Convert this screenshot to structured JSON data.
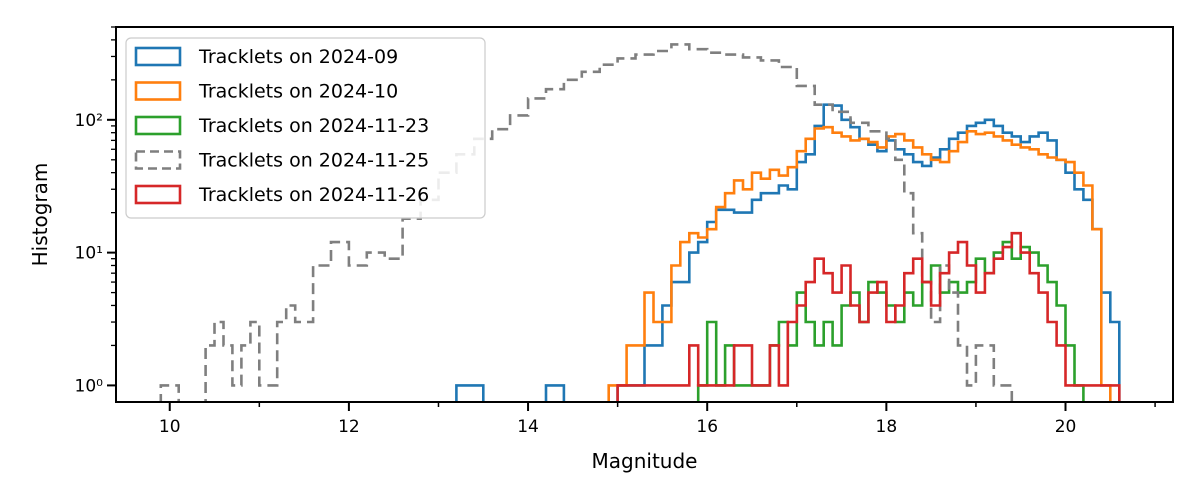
{
  "chart_data": {
    "type": "histogram-step",
    "xlabel": "Magnitude",
    "ylabel": "Histogram",
    "yscale": "log",
    "xlim": [
      9.4,
      21.2
    ],
    "ylim": [
      0.75,
      500
    ],
    "xticks": [
      10,
      12,
      14,
      16,
      18,
      20
    ],
    "xtick_labels": [
      "10",
      "12",
      "14",
      "16",
      "18",
      "20"
    ],
    "yticks": [
      1,
      10,
      100
    ],
    "ytick_labels": [
      "10⁰",
      "10¹",
      "10²"
    ],
    "grid": false,
    "legend_position": "top-left",
    "series": [
      {
        "name": "Tracklets on 2024-09",
        "color": "#1f77b4",
        "dashed": false,
        "points": [
          [
            13.2,
            1
          ],
          [
            13.5,
            0
          ],
          [
            14.2,
            1
          ],
          [
            14.4,
            0
          ],
          [
            15.0,
            1
          ],
          [
            15.3,
            2
          ],
          [
            15.5,
            4
          ],
          [
            15.6,
            6
          ],
          [
            15.8,
            10
          ],
          [
            15.9,
            12
          ],
          [
            16.0,
            17
          ],
          [
            16.1,
            21
          ],
          [
            16.3,
            20
          ],
          [
            16.5,
            25
          ],
          [
            16.6,
            28
          ],
          [
            16.8,
            32
          ],
          [
            16.9,
            30
          ],
          [
            17.0,
            48
          ],
          [
            17.1,
            55
          ],
          [
            17.2,
            90
          ],
          [
            17.3,
            130
          ],
          [
            17.4,
            128
          ],
          [
            17.5,
            100
          ],
          [
            17.6,
            88
          ],
          [
            17.7,
            72
          ],
          [
            17.8,
            65
          ],
          [
            17.9,
            58
          ],
          [
            18.0,
            70
          ],
          [
            18.1,
            60
          ],
          [
            18.2,
            55
          ],
          [
            18.3,
            48
          ],
          [
            18.4,
            45
          ],
          [
            18.5,
            52
          ],
          [
            18.6,
            60
          ],
          [
            18.7,
            72
          ],
          [
            18.8,
            80
          ],
          [
            18.9,
            90
          ],
          [
            19.0,
            95
          ],
          [
            19.1,
            100
          ],
          [
            19.2,
            90
          ],
          [
            19.3,
            80
          ],
          [
            19.4,
            75
          ],
          [
            19.5,
            68
          ],
          [
            19.6,
            75
          ],
          [
            19.7,
            80
          ],
          [
            19.8,
            70
          ],
          [
            19.9,
            50
          ],
          [
            20.0,
            40
          ],
          [
            20.1,
            30
          ],
          [
            20.2,
            25
          ],
          [
            20.3,
            15
          ],
          [
            20.4,
            5
          ],
          [
            20.5,
            3
          ],
          [
            20.6,
            0
          ]
        ]
      },
      {
        "name": "Tracklets on 2024-10",
        "color": "#ff7f0e",
        "dashed": false,
        "points": [
          [
            14.9,
            1
          ],
          [
            15.1,
            2
          ],
          [
            15.3,
            5
          ],
          [
            15.4,
            3
          ],
          [
            15.6,
            8
          ],
          [
            15.7,
            12
          ],
          [
            15.8,
            14
          ],
          [
            15.9,
            13
          ],
          [
            16.0,
            15
          ],
          [
            16.1,
            22
          ],
          [
            16.2,
            28
          ],
          [
            16.3,
            35
          ],
          [
            16.4,
            30
          ],
          [
            16.5,
            40
          ],
          [
            16.6,
            36
          ],
          [
            16.7,
            42
          ],
          [
            16.8,
            38
          ],
          [
            16.9,
            44
          ],
          [
            17.0,
            58
          ],
          [
            17.1,
            72
          ],
          [
            17.2,
            86
          ],
          [
            17.3,
            88
          ],
          [
            17.4,
            80
          ],
          [
            17.5,
            75
          ],
          [
            17.6,
            70
          ],
          [
            17.7,
            72
          ],
          [
            17.8,
            68
          ],
          [
            17.9,
            62
          ],
          [
            18.0,
            75
          ],
          [
            18.1,
            78
          ],
          [
            18.2,
            70
          ],
          [
            18.3,
            62
          ],
          [
            18.4,
            55
          ],
          [
            18.5,
            50
          ],
          [
            18.6,
            48
          ],
          [
            18.7,
            58
          ],
          [
            18.8,
            68
          ],
          [
            18.9,
            82
          ],
          [
            19.0,
            78
          ],
          [
            19.1,
            80
          ],
          [
            19.2,
            75
          ],
          [
            19.3,
            70
          ],
          [
            19.4,
            65
          ],
          [
            19.5,
            62
          ],
          [
            19.6,
            60
          ],
          [
            19.7,
            55
          ],
          [
            19.8,
            52
          ],
          [
            19.9,
            50
          ],
          [
            20.0,
            48
          ],
          [
            20.1,
            40
          ],
          [
            20.2,
            32
          ],
          [
            20.3,
            15
          ],
          [
            20.4,
            1
          ],
          [
            20.5,
            0
          ]
        ]
      },
      {
        "name": "Tracklets on 2024-11-23",
        "color": "#2ca02c",
        "dashed": false,
        "points": [
          [
            15.9,
            1
          ],
          [
            16.0,
            3
          ],
          [
            16.1,
            1
          ],
          [
            16.2,
            2
          ],
          [
            16.3,
            1
          ],
          [
            16.5,
            1
          ],
          [
            16.7,
            2
          ],
          [
            16.8,
            3
          ],
          [
            16.9,
            2
          ],
          [
            17.0,
            5
          ],
          [
            17.1,
            3
          ],
          [
            17.2,
            2
          ],
          [
            17.3,
            3
          ],
          [
            17.4,
            2
          ],
          [
            17.5,
            4
          ],
          [
            17.6,
            5
          ],
          [
            17.7,
            3
          ],
          [
            17.8,
            6
          ],
          [
            17.9,
            5
          ],
          [
            18.0,
            4
          ],
          [
            18.1,
            3
          ],
          [
            18.2,
            5
          ],
          [
            18.3,
            4
          ],
          [
            18.4,
            6
          ],
          [
            18.5,
            8
          ],
          [
            18.6,
            5
          ],
          [
            18.7,
            6
          ],
          [
            18.8,
            5
          ],
          [
            18.9,
            6
          ],
          [
            19.0,
            9
          ],
          [
            19.1,
            7
          ],
          [
            19.2,
            10
          ],
          [
            19.3,
            12
          ],
          [
            19.4,
            9
          ],
          [
            19.5,
            11
          ],
          [
            19.6,
            10
          ],
          [
            19.7,
            8
          ],
          [
            19.8,
            6
          ],
          [
            19.9,
            4
          ],
          [
            20.0,
            2
          ],
          [
            20.1,
            1
          ],
          [
            20.2,
            0
          ]
        ]
      },
      {
        "name": "Tracklets on 2024-11-25",
        "color": "#7f7f7f",
        "dashed": true,
        "points": [
          [
            9.9,
            1
          ],
          [
            10.1,
            0
          ],
          [
            10.4,
            2
          ],
          [
            10.5,
            3
          ],
          [
            10.6,
            2
          ],
          [
            10.7,
            1
          ],
          [
            10.8,
            2
          ],
          [
            10.9,
            3
          ],
          [
            11.0,
            1
          ],
          [
            11.2,
            3
          ],
          [
            11.3,
            4
          ],
          [
            11.4,
            3
          ],
          [
            11.6,
            8
          ],
          [
            11.8,
            12
          ],
          [
            12.0,
            8
          ],
          [
            12.2,
            10
          ],
          [
            12.4,
            9
          ],
          [
            12.6,
            18
          ],
          [
            12.8,
            25
          ],
          [
            13.0,
            40
          ],
          [
            13.2,
            55
          ],
          [
            13.4,
            72
          ],
          [
            13.6,
            85
          ],
          [
            13.8,
            108
          ],
          [
            14.0,
            145
          ],
          [
            14.2,
            170
          ],
          [
            14.4,
            200
          ],
          [
            14.6,
            230
          ],
          [
            14.8,
            260
          ],
          [
            15.0,
            290
          ],
          [
            15.2,
            310
          ],
          [
            15.4,
            330
          ],
          [
            15.6,
            370
          ],
          [
            15.8,
            340
          ],
          [
            16.0,
            320
          ],
          [
            16.2,
            310
          ],
          [
            16.4,
            295
          ],
          [
            16.6,
            280
          ],
          [
            16.8,
            250
          ],
          [
            17.0,
            180
          ],
          [
            17.2,
            130
          ],
          [
            17.4,
            115
          ],
          [
            17.6,
            95
          ],
          [
            17.8,
            82
          ],
          [
            18.0,
            72
          ],
          [
            18.1,
            50
          ],
          [
            18.2,
            28
          ],
          [
            18.3,
            14
          ],
          [
            18.4,
            6
          ],
          [
            18.5,
            3
          ],
          [
            18.6,
            8
          ],
          [
            18.7,
            5
          ],
          [
            18.8,
            2
          ],
          [
            18.9,
            1
          ],
          [
            19.0,
            2
          ],
          [
            19.2,
            1
          ],
          [
            19.4,
            0
          ]
        ]
      },
      {
        "name": "Tracklets on 2024-11-26",
        "color": "#d62728",
        "dashed": false,
        "points": [
          [
            15.0,
            1
          ],
          [
            15.6,
            1
          ],
          [
            15.8,
            2
          ],
          [
            15.9,
            1
          ],
          [
            16.1,
            1
          ],
          [
            16.3,
            2
          ],
          [
            16.5,
            1
          ],
          [
            16.6,
            1
          ],
          [
            16.7,
            2
          ],
          [
            16.8,
            1
          ],
          [
            16.9,
            3
          ],
          [
            17.0,
            4
          ],
          [
            17.1,
            6
          ],
          [
            17.2,
            9
          ],
          [
            17.3,
            7
          ],
          [
            17.4,
            5
          ],
          [
            17.5,
            8
          ],
          [
            17.6,
            4
          ],
          [
            17.7,
            3
          ],
          [
            17.8,
            5
          ],
          [
            17.9,
            6
          ],
          [
            18.0,
            3
          ],
          [
            18.1,
            4
          ],
          [
            18.2,
            7
          ],
          [
            18.3,
            9
          ],
          [
            18.4,
            6
          ],
          [
            18.5,
            4
          ],
          [
            18.6,
            7
          ],
          [
            18.7,
            10
          ],
          [
            18.8,
            12
          ],
          [
            18.9,
            8
          ],
          [
            19.0,
            5
          ],
          [
            19.1,
            7
          ],
          [
            19.2,
            9
          ],
          [
            19.3,
            11
          ],
          [
            19.4,
            14
          ],
          [
            19.5,
            10
          ],
          [
            19.6,
            7
          ],
          [
            19.7,
            5
          ],
          [
            19.8,
            3
          ],
          [
            19.9,
            2
          ],
          [
            20.0,
            1
          ],
          [
            20.5,
            1
          ],
          [
            20.6,
            0
          ]
        ]
      }
    ]
  }
}
